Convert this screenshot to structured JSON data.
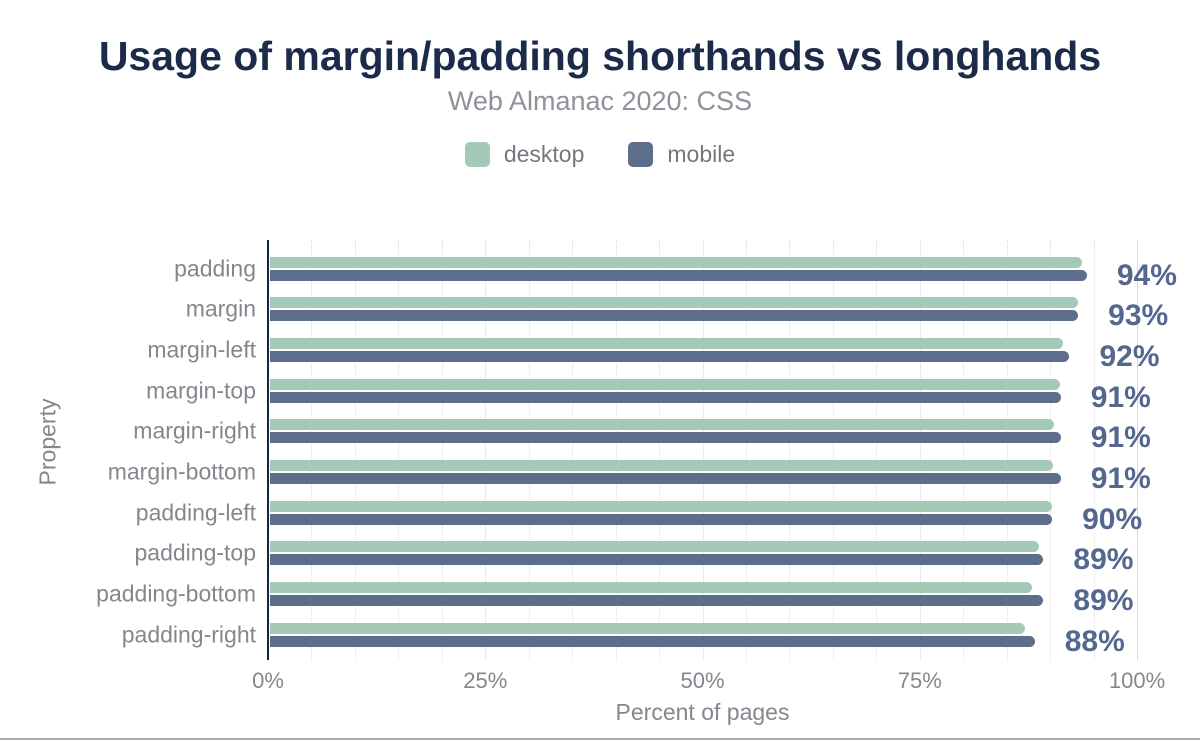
{
  "title": "Usage of margin/padding shorthands vs longhands",
  "subtitle": "Web Almanac 2020: CSS",
  "legend": [
    {
      "label": "desktop",
      "color": "#a4c9b6"
    },
    {
      "label": "mobile",
      "color": "#5d6e8d"
    }
  ],
  "colors": {
    "desktop_bar": "#a4c9b6",
    "mobile_bar": "#5d6e8d",
    "title_text": "#1c2b4a",
    "data_label_text": "#54678e",
    "axis_text": "#84878d",
    "axis_line": "#16253f"
  },
  "chart_data": {
    "type": "bar",
    "orientation": "horizontal",
    "title": "Usage of margin/padding shorthands vs longhands",
    "subtitle": "Web Almanac 2020: CSS",
    "xlabel": "Percent of pages",
    "ylabel": "Property",
    "xlim": [
      0,
      100
    ],
    "x_tick_values": [
      0,
      25,
      50,
      75,
      100
    ],
    "x_ticks": [
      "0%",
      "25%",
      "50%",
      "75%",
      "100%"
    ],
    "grid": "vertical; dotted minor lines every 5%, light solid lines every 25%",
    "legend_position": "top",
    "categories": [
      "padding",
      "margin",
      "margin-left",
      "margin-top",
      "margin-right",
      "margin-bottom",
      "padding-left",
      "padding-top",
      "padding-bottom",
      "padding-right"
    ],
    "series": [
      {
        "name": "desktop",
        "values": [
          93.4,
          93.0,
          91.2,
          90.9,
          90.2,
          90.1,
          90.0,
          88.5,
          87.7,
          86.9
        ]
      },
      {
        "name": "mobile",
        "values": [
          94,
          93,
          92,
          91,
          91,
          91,
          90,
          89,
          89,
          88
        ]
      }
    ],
    "data_labels": [
      "94%",
      "93%",
      "92%",
      "91%",
      "91%",
      "91%",
      "90%",
      "89%",
      "89%",
      "88%"
    ],
    "data_labels_series": "mobile"
  }
}
